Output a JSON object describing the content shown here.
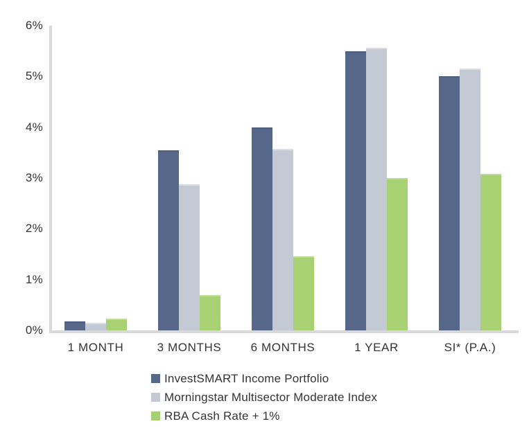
{
  "chart_data": {
    "type": "bar",
    "title": "",
    "xlabel": "",
    "ylabel": "",
    "categories": [
      "1 MONTH",
      "3 MONTHS",
      "6 MONTHS",
      "1 YEAR",
      "SI* (P.A.)"
    ],
    "series": [
      {
        "name": "InvestSMART Income Portfolio",
        "color": "#56678a",
        "edge_color": "#4d5e81",
        "values": [
          0.18,
          3.54,
          4.0,
          5.49,
          5.0
        ]
      },
      {
        "name": "Morningstar Multisector Moderate Index",
        "color": "#c3cad3",
        "edge_color": "#d9dee4",
        "values": [
          0.15,
          2.88,
          3.57,
          5.57,
          5.15
        ]
      },
      {
        "name": "RBA Cash Rate + 1%",
        "color": "#a8d173",
        "edge_color": "#bedd95",
        "values": [
          0.23,
          0.7,
          1.46,
          3.0,
          3.08
        ]
      }
    ],
    "ylim": [
      0,
      6
    ],
    "yticks": [
      "0%",
      "1%",
      "2%",
      "3%",
      "4%",
      "5%",
      "6%"
    ],
    "grid": false,
    "legend_position": "bottom-center",
    "axis_color": "#d9d9d9",
    "text_color": "#333338"
  }
}
